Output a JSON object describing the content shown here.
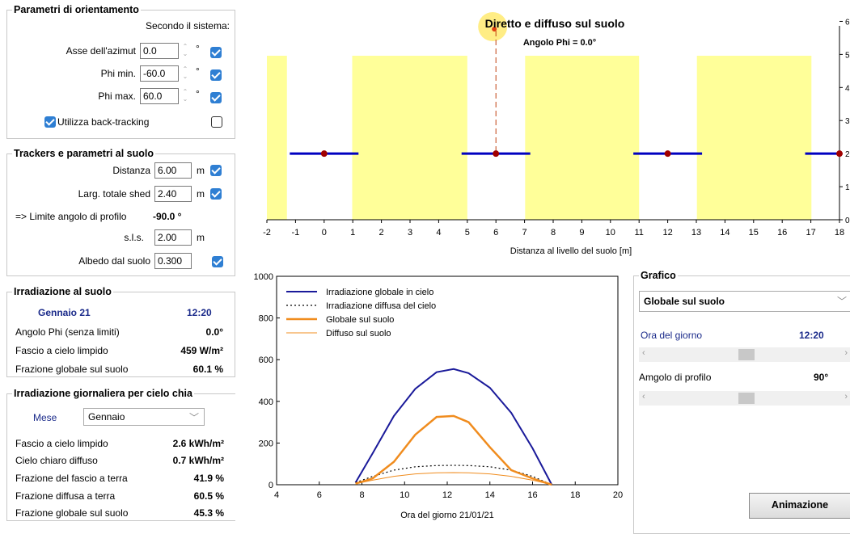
{
  "orient": {
    "legend": "Parametri di orientamento",
    "system_label": "Secondo il sistema:",
    "azimut_label": "Asse dell'azimut",
    "azimut_value": "0.0",
    "phimin_label": "Phi min.",
    "phimin_value": "-60.0",
    "phimax_label": "Phi max.",
    "phimax_value": "60.0",
    "degree_unit": "°",
    "backtracking_label": "Utilizza back-tracking"
  },
  "trackers": {
    "legend": "Trackers e parametri al suolo",
    "distanza_label": "Distanza",
    "distanza_value": "6.00",
    "larg_label": "Larg. totale shed",
    "larg_value": "2.40",
    "meter_unit": "m",
    "limite_label": "=> Limite angolo di profilo",
    "limite_value": "-90.0 °",
    "sls_label": "s.l.s.",
    "sls_value": "2.00",
    "albedo_label": "Albedo dal suolo",
    "albedo_value": "0.300"
  },
  "irrad": {
    "legend": "Irradiazione al suolo",
    "date": "Gennaio 21",
    "time": "12:20",
    "phi_label": "Angolo Phi (senza limiti)",
    "phi_value": "0.0°",
    "fascio_label": "Fascio a cielo limpido",
    "fascio_value": "459 W/m²",
    "frazione_label": "Frazione globale sul suolo",
    "frazione_value": "60.1 %"
  },
  "daily": {
    "legend": "Irradiazione giornaliera per cielo chia",
    "mese_label": "Mese",
    "mese_value": "Gennaio",
    "rows": [
      {
        "label": "Fascio a cielo limpido",
        "value": "2.6 kWh/m²"
      },
      {
        "label": "Cielo chiaro diffuso",
        "value": "0.7 kWh/m²"
      },
      {
        "label": "Frazione del fascio a terra",
        "value": "41.9 %"
      },
      {
        "label": "Frazione diffusa a terra",
        "value": "60.5 %"
      },
      {
        "label": "Frazione globale sul suolo",
        "value": "45.3 %"
      }
    ]
  },
  "grafico": {
    "legend": "Grafico",
    "select_value": "Globale sul suolo",
    "ora_label": "Ora del giorno",
    "ora_value": "12:20",
    "ora_fraction": 0.5,
    "angolo_label": "Amgolo di profilo",
    "angolo_value": "90°",
    "angolo_fraction": 0.5,
    "animate_label": "Animazione"
  },
  "colors": {
    "shade": "#ffff99",
    "tracker": "#0000c0",
    "global_sky": "#1a1a9a",
    "ground": "#f08c1e",
    "sun": "#ffe866"
  },
  "chart_data": [
    {
      "type": "scene",
      "title": "Diretto e diffuso sul suolo",
      "subtitle": "Angolo Phi = 0.0°",
      "xlabel": "Distanza al livello del suolo [m]",
      "xlim": [
        -2,
        18
      ],
      "ylim": [
        0,
        6.5
      ],
      "x_ticks": [
        "-2",
        "-1",
        "0",
        "1",
        "2",
        "3",
        "4",
        "5",
        "6",
        "7",
        "8",
        "9",
        "10",
        "11",
        "12",
        "13",
        "14",
        "15",
        "16",
        "17",
        "18"
      ],
      "y_ticks": [
        "0",
        "1",
        "2",
        "3",
        "4",
        "5",
        "6"
      ],
      "shaded_zones": [
        [
          -2,
          -1.3
        ],
        [
          0.98,
          5
        ],
        [
          7.02,
          11
        ],
        [
          13.02,
          17.02
        ]
      ],
      "trackers": [
        {
          "center": 0,
          "width": 2.4,
          "height": 2
        },
        {
          "center": 6,
          "width": 2.4,
          "height": 2
        },
        {
          "center": 12,
          "width": 2.4,
          "height": 2
        },
        {
          "center": 18,
          "width": 2.4,
          "height": 2
        }
      ],
      "sun_ray_x": 6
    },
    {
      "type": "line",
      "xlabel": "Ora del giorno 21/01/21",
      "xlim": [
        4,
        20
      ],
      "ylim": [
        0,
        1000
      ],
      "x_ticks": [
        "4",
        "6",
        "8",
        "10",
        "12",
        "14",
        "16",
        "18",
        "20"
      ],
      "y_ticks": [
        "0",
        "200",
        "400",
        "600",
        "800",
        "1000"
      ],
      "x": [
        7.7,
        8.5,
        9.5,
        10.5,
        11.5,
        12.3,
        13,
        14,
        15,
        16,
        16.9
      ],
      "series": [
        {
          "name": "Irradiazione globale in cielo",
          "values": [
            10,
            150,
            330,
            460,
            540,
            555,
            535,
            465,
            345,
            175,
            0
          ]
        },
        {
          "name": "Irradiazione diffusa del cielo",
          "values": [
            10,
            40,
            70,
            86,
            92,
            93,
            92,
            86,
            70,
            40,
            0
          ]
        },
        {
          "name": "Globale sul suolo",
          "values": [
            5,
            30,
            110,
            240,
            325,
            330,
            300,
            180,
            70,
            30,
            0
          ]
        },
        {
          "name": "Diffuso sul suolo",
          "values": [
            5,
            22,
            40,
            52,
            57,
            58,
            57,
            52,
            40,
            22,
            0
          ]
        }
      ],
      "legend_position": "top-left"
    }
  ]
}
